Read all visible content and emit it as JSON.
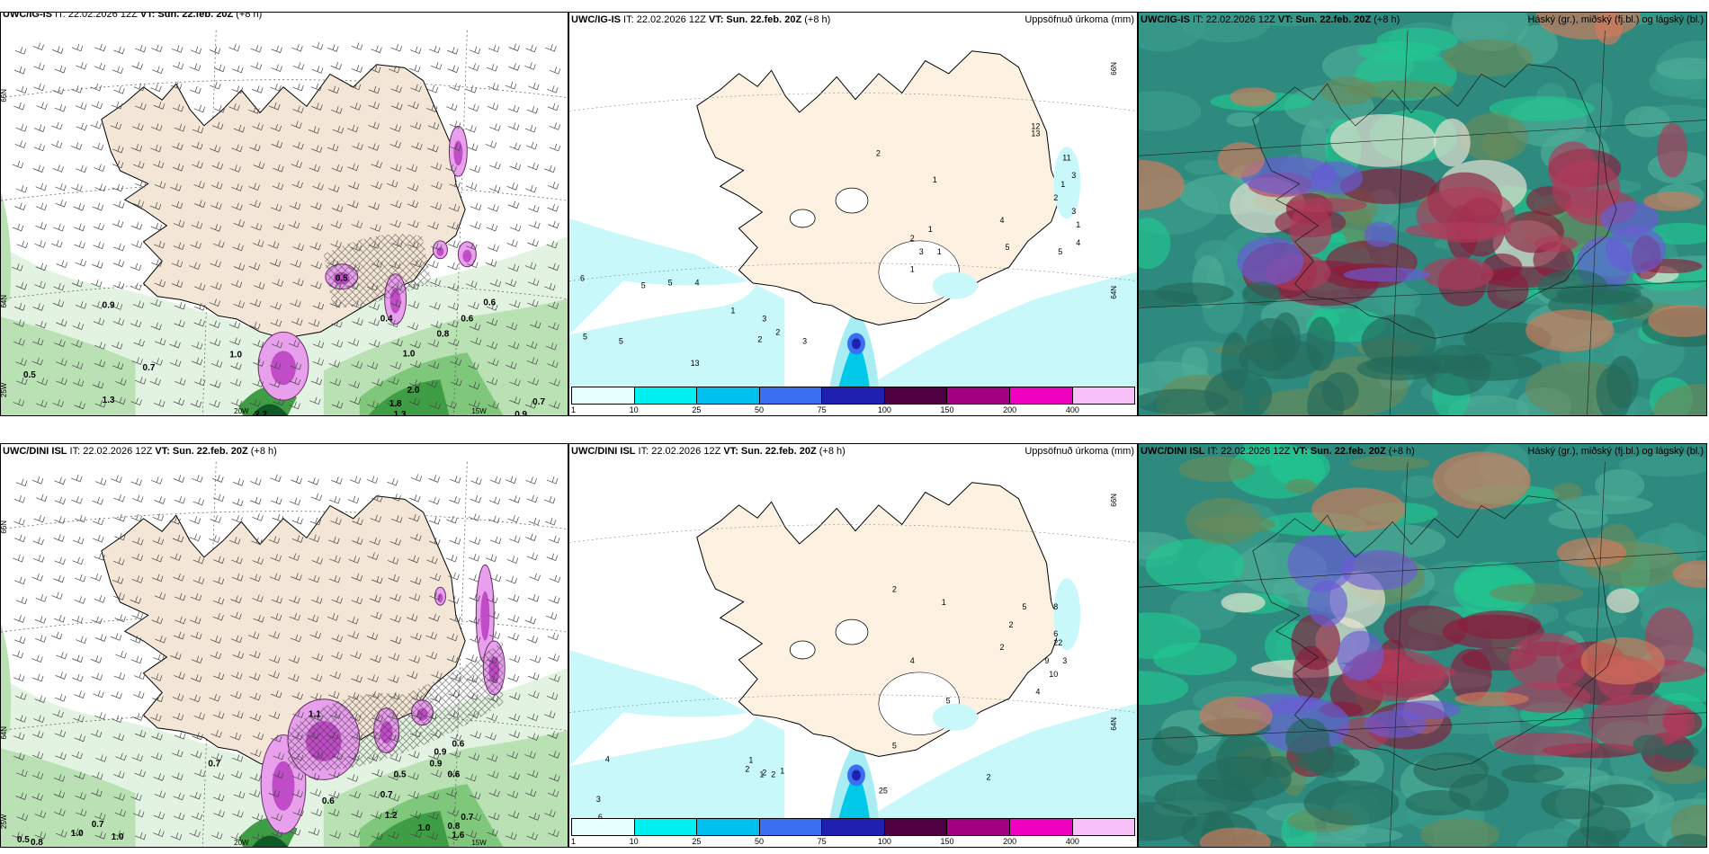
{
  "panels": {
    "top_left": {
      "title_prefix": "UWC/IG-IS",
      "title_it": " IT: 22.02.2026 12Z ",
      "title_vt": "VT: Sun. 22.feb. 20Z",
      "title_tail": " (+8 h)"
    },
    "top_mid": {
      "title_prefix": "UWC/IG-IS",
      "title_it": " IT: 22.02.2026 12Z ",
      "title_vt": "VT: Sun. 22.feb. 20Z",
      "title_tail": " (+8 h)",
      "right": "Uppsöfnuð úrkoma (mm)"
    },
    "top_right": {
      "title_prefix": "UWC/IG-IS",
      "title_it": " IT: 22.02.2026 12Z ",
      "title_vt": "VT: Sun. 22.feb. 20Z",
      "title_tail": " (+8 h)",
      "right": "Háský (gr.), miðský (fj.bl.) og lágský (bl.)"
    },
    "bot_left": {
      "title_prefix": "UWC/DINI ISL",
      "title_it": " IT: 22.02.2026 12Z ",
      "title_vt": "VT: Sun. 22.feb. 20Z",
      "title_tail": " (+8 h)"
    },
    "bot_mid": {
      "title_prefix": "UWC/DINI ISL",
      "title_it": " IT: 22.02.2026 12Z ",
      "title_vt": "VT: Sun. 22.feb. 20Z",
      "title_tail": " (+8 h)",
      "right": "Uppsöfnuð úrkoma (mm)"
    },
    "bot_right": {
      "title_prefix": "UWC/DINI ISL",
      "title_it": " IT: 22.02.2026 12Z ",
      "title_vt": "VT: Sun. 22.feb. 20Z",
      "title_tail": " (+8 h)",
      "right": "Háský (gr.), miðský (fj.bl.) og lágský (bl.)"
    }
  },
  "legend": {
    "colors": [
      "#e6ffff",
      "#00f0f0",
      "#00c0f0",
      "#3a6ff0",
      "#2020b0",
      "#500040",
      "#a00080",
      "#f000c0",
      "#f8c0f8"
    ],
    "ticks": [
      "1",
      "10",
      "25",
      "50",
      "75",
      "100",
      "150",
      "200",
      "400"
    ]
  },
  "graticule": {
    "top_left": {
      "lat1": "66N",
      "lat2": "64N",
      "lat3": "25W",
      "lon1": "20W",
      "lon2": "15W",
      "lon_r": "66N",
      "lon_r2": "64N"
    },
    "top_mid": {
      "r1": "66N",
      "r2": "64N"
    },
    "bot_left": {
      "lat1": "66N",
      "lat2": "64N",
      "lat3": "25W",
      "lon1": "20W",
      "lon2": "15W"
    },
    "bot_mid": {
      "r1": "66N",
      "r2": "64N"
    }
  },
  "precip_labels_top": [
    "6",
    "5",
    "5",
    "4",
    "5",
    "5",
    "1",
    "3",
    "2",
    "2",
    "3",
    "13",
    "2",
    "1",
    "1",
    "3",
    "1",
    "2",
    "1",
    "4",
    "5",
    "12",
    "13",
    "11",
    "3",
    "1",
    "2",
    "5",
    "4",
    "3",
    "1"
  ],
  "precip_labels_bot": [
    "4",
    "3",
    "6",
    "5",
    "8",
    "1",
    "2",
    "2",
    "2",
    "1",
    "1",
    "2",
    "4",
    "5",
    "25",
    "5",
    "2",
    "1",
    "2",
    "5",
    "8",
    "6",
    "22",
    "9",
    "10",
    "4",
    "2",
    "3"
  ],
  "snow_labels_top": [
    "0.9",
    "0.5",
    "0.7",
    "1.3",
    "1.0",
    "2.2",
    "1.8",
    "1.3",
    "2.0",
    "1.0",
    "0.8",
    "0.6",
    "0.6",
    "0.7",
    "0.9",
    "0.5",
    "0.4"
  ],
  "snow_labels_bot": [
    "0.7",
    "0.5",
    "0.8",
    "1.0",
    "0.7",
    "1.0",
    "0.6",
    "0.9",
    "0.7",
    "1.2",
    "1.0",
    "0.8",
    "0.7",
    "0.6",
    "0.5",
    "0.9",
    "0.6",
    "1.6",
    "1.1"
  ]
}
